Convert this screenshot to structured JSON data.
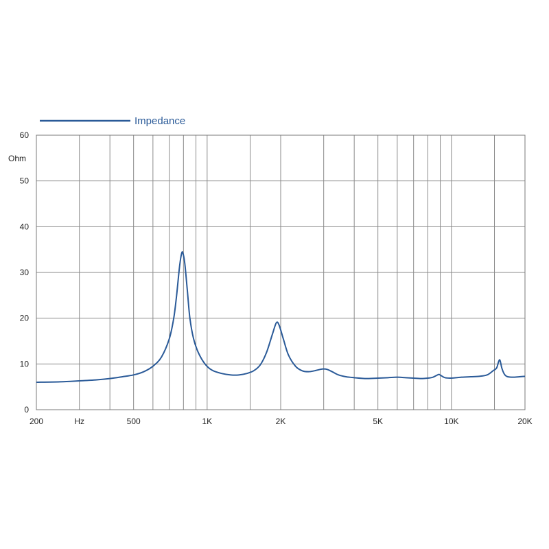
{
  "chart_data": {
    "type": "line",
    "x_scale": "log",
    "xlim": [
      200,
      20000
    ],
    "ylim": [
      0,
      60
    ],
    "ylabel": "Ohm",
    "grid": true,
    "legend_position": "top-left",
    "y_ticks": [
      0,
      10,
      20,
      30,
      40,
      50,
      60
    ],
    "y_tick_labels": [
      "0",
      "10",
      "20",
      "30",
      "40",
      "50",
      "60"
    ],
    "x_gridlines": [
      300,
      400,
      500,
      600,
      700,
      800,
      900,
      1000,
      1500,
      2000,
      3000,
      4000,
      5000,
      6000,
      7000,
      8000,
      9000,
      10000,
      15000
    ],
    "x_tick_labels": [
      {
        "value": 200,
        "label": "200"
      },
      {
        "value": 300,
        "label": "Hz"
      },
      {
        "value": 500,
        "label": "500"
      },
      {
        "value": 1000,
        "label": "1K"
      },
      {
        "value": 2000,
        "label": "2K"
      },
      {
        "value": 5000,
        "label": "5K"
      },
      {
        "value": 10000,
        "label": "10K"
      },
      {
        "value": 20000,
        "label": "20K"
      }
    ],
    "series": [
      {
        "name": "Impedance",
        "color": "#2a5a98",
        "points": [
          [
            200,
            6.0
          ],
          [
            250,
            6.1
          ],
          [
            300,
            6.3
          ],
          [
            350,
            6.5
          ],
          [
            400,
            6.8
          ],
          [
            450,
            7.2
          ],
          [
            500,
            7.6
          ],
          [
            550,
            8.3
          ],
          [
            600,
            9.5
          ],
          [
            650,
            11.5
          ],
          [
            700,
            15.5
          ],
          [
            730,
            20.0
          ],
          [
            750,
            25.0
          ],
          [
            770,
            31.0
          ],
          [
            785,
            34.0
          ],
          [
            795,
            34.3
          ],
          [
            810,
            32.0
          ],
          [
            830,
            26.0
          ],
          [
            850,
            20.0
          ],
          [
            880,
            15.5
          ],
          [
            920,
            12.5
          ],
          [
            980,
            10.0
          ],
          [
            1050,
            8.6
          ],
          [
            1150,
            7.9
          ],
          [
            1250,
            7.6
          ],
          [
            1350,
            7.6
          ],
          [
            1450,
            7.9
          ],
          [
            1550,
            8.5
          ],
          [
            1650,
            9.8
          ],
          [
            1750,
            12.5
          ],
          [
            1850,
            16.5
          ],
          [
            1920,
            19.0
          ],
          [
            1970,
            18.5
          ],
          [
            2050,
            15.5
          ],
          [
            2150,
            12.0
          ],
          [
            2300,
            9.5
          ],
          [
            2450,
            8.5
          ],
          [
            2600,
            8.3
          ],
          [
            2750,
            8.5
          ],
          [
            2900,
            8.8
          ],
          [
            3000,
            8.9
          ],
          [
            3100,
            8.8
          ],
          [
            3250,
            8.3
          ],
          [
            3450,
            7.6
          ],
          [
            3700,
            7.2
          ],
          [
            4000,
            7.0
          ],
          [
            4500,
            6.8
          ],
          [
            5000,
            6.9
          ],
          [
            5500,
            7.0
          ],
          [
            6000,
            7.1
          ],
          [
            6500,
            7.0
          ],
          [
            7000,
            6.9
          ],
          [
            7500,
            6.8
          ],
          [
            8000,
            6.9
          ],
          [
            8400,
            7.1
          ],
          [
            8700,
            7.5
          ],
          [
            8900,
            7.7
          ],
          [
            9100,
            7.4
          ],
          [
            9400,
            7.0
          ],
          [
            10000,
            6.9
          ],
          [
            11000,
            7.1
          ],
          [
            12000,
            7.2
          ],
          [
            13000,
            7.3
          ],
          [
            14000,
            7.6
          ],
          [
            14800,
            8.5
          ],
          [
            15300,
            9.1
          ],
          [
            15600,
            10.5
          ],
          [
            15800,
            10.8
          ],
          [
            16100,
            9.0
          ],
          [
            16500,
            7.7
          ],
          [
            17000,
            7.2
          ],
          [
            18000,
            7.1
          ],
          [
            19000,
            7.2
          ],
          [
            20000,
            7.3
          ]
        ]
      }
    ]
  }
}
